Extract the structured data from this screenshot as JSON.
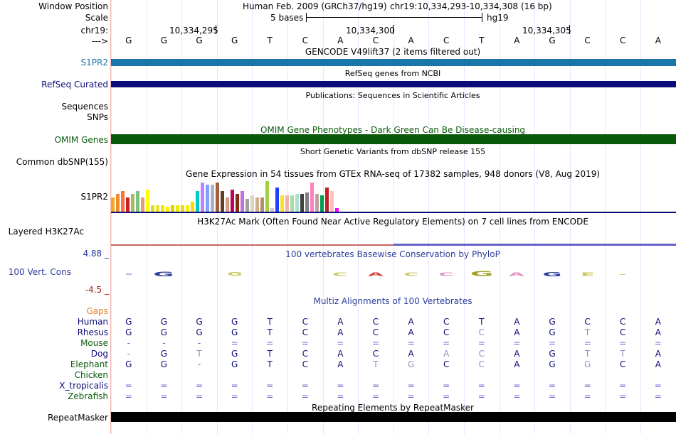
{
  "header": {
    "window_position_label": "Window Position",
    "assembly_text": "Human Feb. 2009 (GRCh37/hg19)",
    "position_text": "chr19:10,334,293-10,334,308 (16 bp)",
    "scale_label": "Scale",
    "scale_text": "5 bases",
    "scale_db": "hg19",
    "chrom_label": "chr19:",
    "strand_label": "--->",
    "coords": [
      "10,334,295",
      "10,334,300",
      "10,334,305"
    ]
  },
  "sequence": [
    "G",
    "G",
    "G",
    "G",
    "T",
    "C",
    "A",
    "C",
    "A",
    "C",
    "T",
    "A",
    "G",
    "C",
    "C",
    "A"
  ],
  "tracks": {
    "gencode": {
      "title": "GENCODE V49lift37 (2 items filtered out)",
      "label": "S1PR2",
      "color": "#1976a8"
    },
    "refseq": {
      "title": "RefSeq genes from NCBI",
      "label": "RefSeq Curated",
      "color": "#0c0c78"
    },
    "publications": {
      "title": "Publications: Sequences in Scientific Articles",
      "label1": "Sequences",
      "label2": "SNPs"
    },
    "omim": {
      "title": "OMIM Gene Phenotypes - Dark Green Can Be Disease-causing",
      "label": "OMIM Genes",
      "color": "#0a5a0a"
    },
    "dbsnp": {
      "title": "Short Genetic Variants from dbSNP release 155",
      "label": "Common dbSNP(155)"
    },
    "gtex": {
      "title": "Gene Expression in 54 tissues from GTEx RNA-seq of 17382 samples, 948 donors (V8, Aug 2019)",
      "label": "S1PR2"
    },
    "h3k27ac": {
      "title": "H3K27Ac Mark (Often Found Near Active Regulatory Elements) on 7 cell lines from ENCODE",
      "label": "Layered H3K27Ac"
    },
    "phylop": {
      "title": "100 vertebrates Basewise Conservation by PhyloP",
      "label": "100 Vert. Cons",
      "max": "4.88 _",
      "min": "-4.5 _"
    },
    "multiz": {
      "title": "Multiz Alignments of 100 Vertebrates",
      "gaps_label": "Gaps"
    },
    "repeatmasker": {
      "title": "Repeating Elements by RepeatMasker",
      "label": "RepeatMasker"
    }
  },
  "species": [
    {
      "name": "Human",
      "bases": [
        "G",
        "G",
        "G",
        "G",
        "T",
        "C",
        "A",
        "C",
        "A",
        "C",
        "T",
        "A",
        "G",
        "C",
        "C",
        "A"
      ]
    },
    {
      "name": "Rhesus",
      "bases": [
        "G",
        "G",
        "G",
        "G",
        "T",
        "C",
        "A",
        "C",
        "A",
        "C",
        "C",
        "A",
        "G",
        "T",
        "C",
        "A"
      ]
    },
    {
      "name": "Mouse",
      "bases": [
        "-",
        "-",
        "-",
        "=",
        "=",
        "=",
        "=",
        "=",
        "=",
        "=",
        "=",
        "=",
        "=",
        "=",
        "=",
        "="
      ]
    },
    {
      "name": "Dog",
      "bases": [
        "-",
        "G",
        "T",
        "G",
        "T",
        "C",
        "A",
        "C",
        "A",
        "A",
        "C",
        "A",
        "G",
        "T",
        "T",
        "A"
      ]
    },
    {
      "name": "Elephant",
      "bases": [
        "G",
        "G",
        "-",
        "G",
        "T",
        "C",
        "A",
        "T",
        "G",
        "C",
        "C",
        "A",
        "G",
        "G",
        "C",
        "A"
      ]
    },
    {
      "name": "Chicken",
      "bases": [
        "",
        "",
        "",
        "",
        "",
        "",
        "",
        "",
        "",
        "",
        "",
        "",
        "",
        "",
        "",
        ""
      ]
    },
    {
      "name": "X_tropicalis",
      "bases": [
        "=",
        "=",
        "=",
        "=",
        "=",
        "=",
        "=",
        "=",
        "=",
        "=",
        "=",
        "=",
        "=",
        "=",
        "=",
        "="
      ]
    },
    {
      "name": "Zebrafish",
      "bases": [
        "=",
        "=",
        "=",
        "=",
        "=",
        "=",
        "=",
        "=",
        "=",
        "=",
        "=",
        "=",
        "=",
        "=",
        "=",
        "="
      ]
    }
  ],
  "gtex_colors": [
    "#f5a623",
    "#f08c28",
    "#ff6e3c",
    "#cc2020",
    "#a0c060",
    "#80c080",
    "#e0a070",
    "#ffff00",
    "#d8e020",
    "#f0e030",
    "#ffe000",
    "#fff000",
    "#e0d000",
    "#f0e800",
    "#e8d820",
    "#f8f000",
    "#ffd700",
    "#00c8c8",
    "#c080ff",
    "#80a0ff",
    "#b0b0c0",
    "#a06040",
    "#604020",
    "#d0a080",
    "#c00060",
    "#803010",
    "#c070e0",
    "#a0a0a0",
    "#e0d0c0",
    "#d0b090",
    "#b09070",
    "#a0d040",
    "#e0c0e0",
    "#2040ff",
    "#ffe020",
    "#f0b0b0",
    "#a0e0a0",
    "#b0e0d0",
    "#404040",
    "#808080",
    "#ff80c0",
    "#c0a0a0",
    "#00a050",
    "#c02020",
    "#ffc0c0",
    "#ff00ff"
  ],
  "gtex_values": [
    0.45,
    0.55,
    0.65,
    0.45,
    0.55,
    0.65,
    0.45,
    0.7,
    0.2,
    0.2,
    0.2,
    0.15,
    0.2,
    0.2,
    0.2,
    0.2,
    0.3,
    0.65,
    0.9,
    0.85,
    0.85,
    0.9,
    0.65,
    0.45,
    0.7,
    0.55,
    0.65,
    0.4,
    0.5,
    0.45,
    0.45,
    0.95,
    0.1,
    0.75,
    0.5,
    0.5,
    0.5,
    0.55,
    0.55,
    0.6,
    0.9,
    0.55,
    0.5,
    0.75,
    0.65,
    0.1
  ],
  "phylop_logo": [
    {
      "base": "-",
      "color": "#6a6ad0",
      "scale": 0.3
    },
    {
      "base": "G",
      "color": "#2b3d9c",
      "scale": 0.6
    },
    {
      "base": "",
      "color": "#ffffff",
      "scale": 0
    },
    {
      "base": "G",
      "color": "#c8c860",
      "scale": 0.3
    },
    {
      "base": "",
      "color": "#ffffff",
      "scale": 0
    },
    {
      "base": "",
      "color": "#ffffff",
      "scale": 0
    },
    {
      "base": "C",
      "color": "#c8c860",
      "scale": 0.35
    },
    {
      "base": "A",
      "color": "#d04040",
      "scale": 0.35
    },
    {
      "base": "C",
      "color": "#c8c860",
      "scale": 0.35
    },
    {
      "base": "C",
      "color": "#e090c0",
      "scale": 0.35
    },
    {
      "base": "G",
      "color": "#a0a020",
      "scale": 0.7
    },
    {
      "base": "A",
      "color": "#e090c0",
      "scale": 0.35
    },
    {
      "base": "G",
      "color": "#2b3d9c",
      "scale": 0.5
    },
    {
      "base": "E",
      "color": "#c8c860",
      "scale": 0.35
    },
    {
      "base": "-",
      "color": "#c8c860",
      "scale": 0.2
    },
    {
      "base": "",
      "color": "#ffffff",
      "scale": 0
    }
  ]
}
